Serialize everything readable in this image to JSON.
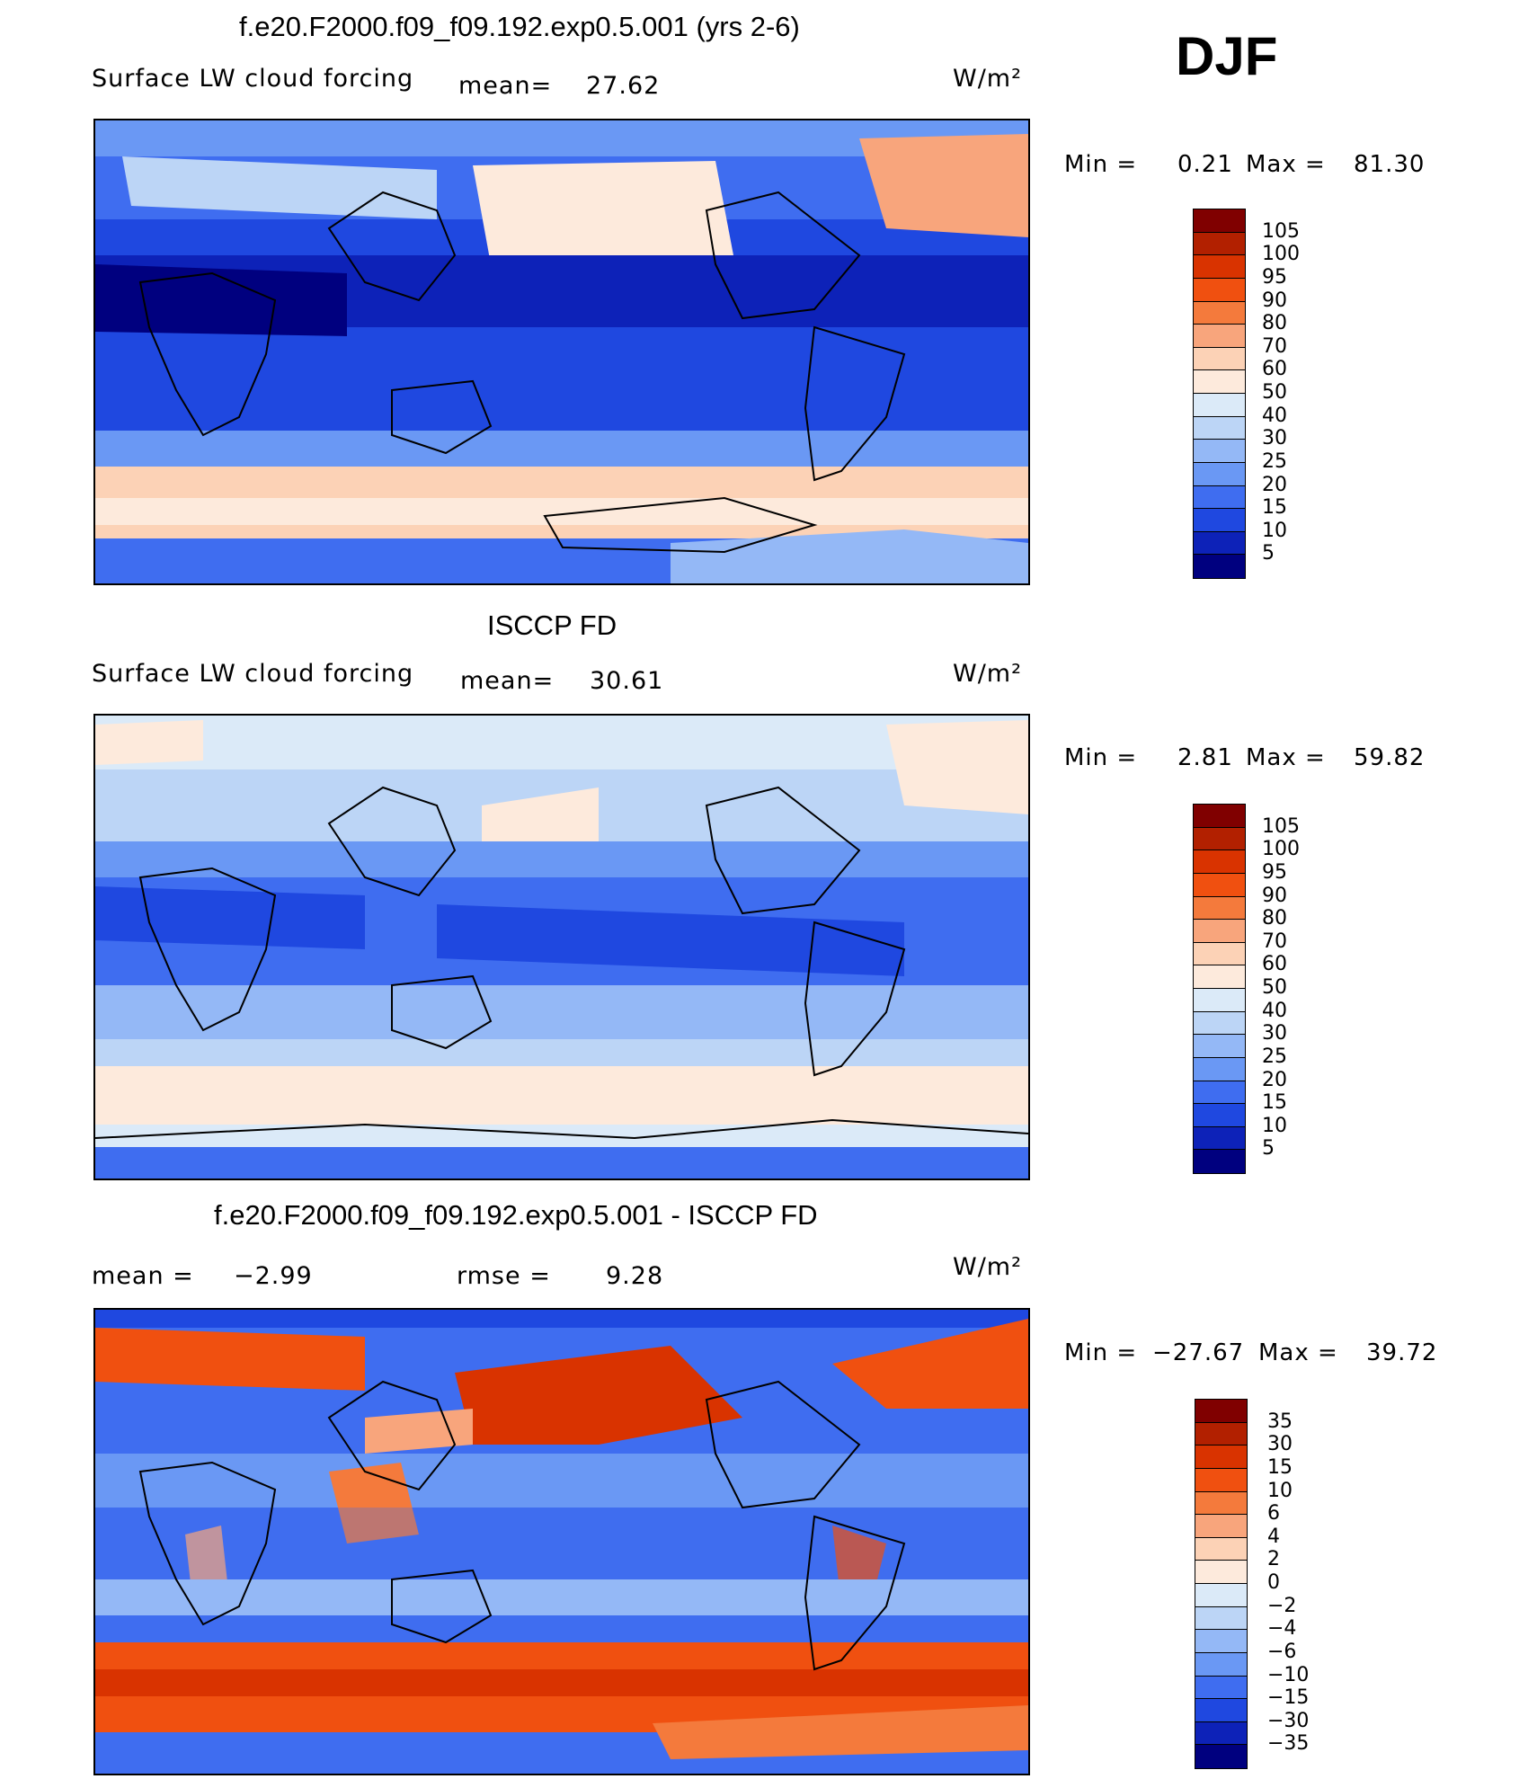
{
  "season": "DJF",
  "panels": [
    {
      "title": "f.e20.F2000.f09_f09.192.exp0.5.001 (yrs 2-6)",
      "variable": "Surface LW cloud forcing",
      "mean_label": "mean=",
      "mean": "27.62",
      "units": "W/m²",
      "min_label": "Min =",
      "min": "0.21",
      "max_label": "Max =",
      "max": "81.30",
      "levels": [
        "105",
        "100",
        "95",
        "90",
        "80",
        "70",
        "60",
        "50",
        "40",
        "30",
        "25",
        "20",
        "15",
        "10",
        "5"
      ],
      "colors": [
        "#800000",
        "#b22000",
        "#d93300",
        "#f05010",
        "#f47a3c",
        "#f8a57c",
        "#fcd2b6",
        "#fdeadc",
        "#dbeaf8",
        "#bcd5f6",
        "#94b8f6",
        "#6a98f4",
        "#3f6df0",
        "#1f48e0",
        "#0d22b8",
        "#00007f"
      ]
    },
    {
      "title": "ISCCP FD",
      "variable": "Surface LW cloud forcing",
      "mean_label": "mean=",
      "mean": "30.61",
      "units": "W/m²",
      "min_label": "Min =",
      "min": "2.81",
      "max_label": "Max =",
      "max": "59.82",
      "levels": [
        "105",
        "100",
        "95",
        "90",
        "80",
        "70",
        "60",
        "50",
        "40",
        "30",
        "25",
        "20",
        "15",
        "10",
        "5"
      ],
      "colors": [
        "#800000",
        "#b22000",
        "#d93300",
        "#f05010",
        "#f47a3c",
        "#f8a57c",
        "#fcd2b6",
        "#fdeadc",
        "#dbeaf8",
        "#bcd5f6",
        "#94b8f6",
        "#6a98f4",
        "#3f6df0",
        "#1f48e0",
        "#0d22b8",
        "#00007f"
      ]
    },
    {
      "title": "f.e20.F2000.f09_f09.192.exp0.5.001 - ISCCP FD",
      "mean_label": "mean =",
      "mean": "−2.99",
      "rmse_label": "rmse =",
      "rmse": "9.28",
      "units": "W/m²",
      "min_label": "Min =",
      "min": "−27.67",
      "max_label": "Max =",
      "max": "39.72",
      "levels": [
        "35",
        "30",
        "15",
        "10",
        "6",
        "4",
        "2",
        "0",
        "−2",
        "−4",
        "−6",
        "−10",
        "−15",
        "−30",
        "−35"
      ],
      "colors": [
        "#800000",
        "#b22000",
        "#d93300",
        "#f05010",
        "#f47a3c",
        "#f8a57c",
        "#fcd2b6",
        "#fdeadc",
        "#dbeaf8",
        "#bcd5f6",
        "#94b8f6",
        "#6a98f4",
        "#3f6df0",
        "#1f48e0",
        "#0d22b8",
        "#00007f"
      ]
    }
  ]
}
